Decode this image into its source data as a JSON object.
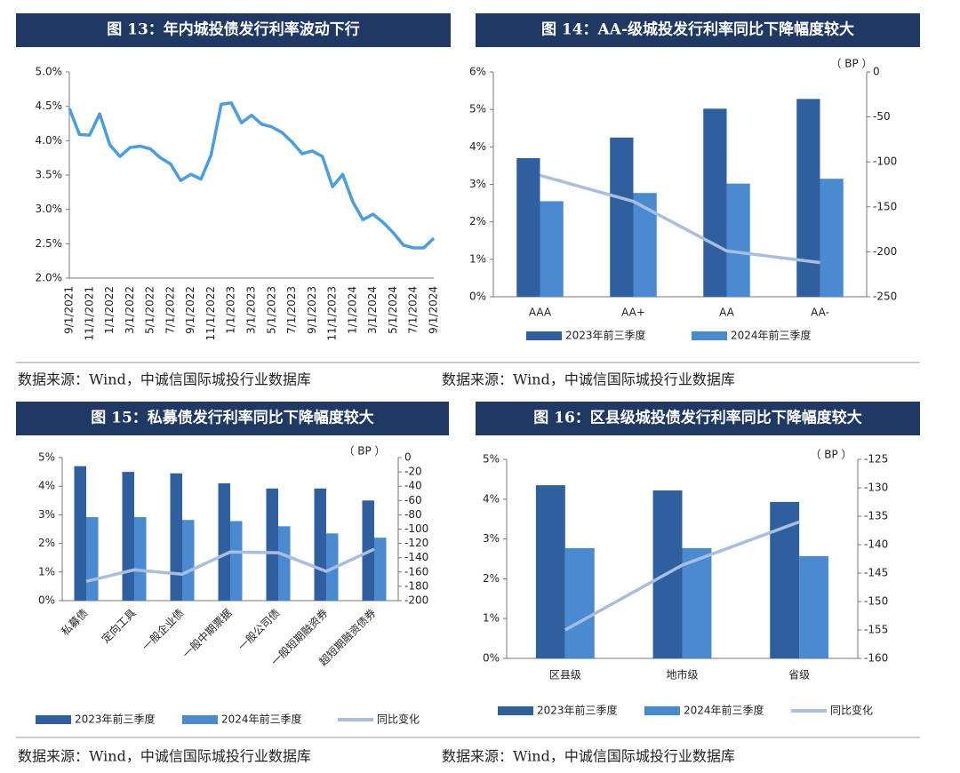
{
  "chart_data": [
    {
      "type": "line",
      "title": "图 13：年内城投债发行利率波动下行",
      "source": "数据来源：Wind，中诚信国际城投行业数据库",
      "categories": [
        "9/1/2021",
        null,
        "11/1/2021",
        null,
        "1/1/2022",
        null,
        "3/1/2022",
        null,
        "5/1/2022",
        null,
        "7/1/2022",
        null,
        "9/1/2022",
        null,
        "11/1/2022",
        null,
        "1/1/2023",
        null,
        "3/1/2023",
        null,
        "5/1/2023",
        null,
        "7/1/2023",
        null,
        "9/1/2023",
        null,
        "11/1/2023",
        null,
        "1/1/2024",
        null,
        "3/1/2024",
        null,
        "5/1/2024",
        null,
        "7/1/2024",
        null,
        "9/1/2024"
      ],
      "values": [
        4.47,
        4.09,
        4.08,
        4.39,
        3.94,
        3.77,
        3.9,
        3.92,
        3.88,
        3.75,
        3.66,
        3.42,
        3.51,
        3.44,
        3.79,
        4.53,
        4.55,
        4.26,
        4.37,
        4.24,
        4.2,
        4.12,
        3.98,
        3.81,
        3.85,
        3.77,
        3.33,
        3.51,
        3.11,
        2.85,
        2.93,
        2.81,
        2.66,
        2.48,
        2.44,
        2.44,
        2.58
      ],
      "color": "#4a9ee0",
      "ylim": [
        2,
        5
      ],
      "yticks": [
        {
          "value": 2,
          "label": "2.0%"
        },
        {
          "value": 2.5,
          "label": "2.5%"
        },
        {
          "value": 3,
          "label": "3.0%"
        },
        {
          "value": 3.5,
          "label": "3.5%"
        },
        {
          "value": 4,
          "label": "4.0%"
        },
        {
          "value": 4.5,
          "label": "4.5%"
        },
        {
          "value": 5,
          "label": "5.0%"
        }
      ]
    },
    {
      "type": "bar",
      "title": "图 14：AA-级城投发行利率同比下降幅度较大",
      "source": "数据来源：Wind，中诚信国际城投行业数据库",
      "y2_unit": "（ BP ）",
      "categories": [
        "AAA",
        "AA+",
        "AA",
        "AA-"
      ],
      "series": [
        {
          "name": "2023年前三季度",
          "color": "#2f5f9e",
          "values": [
            3.7,
            4.25,
            5.02,
            5.28
          ]
        },
        {
          "name": "2024年前三季度",
          "color": "#4a8ad0",
          "values": [
            2.55,
            2.77,
            3.02,
            3.15
          ]
        },
        {
          "type": "line",
          "axis": "y2",
          "color": "#a9bedf",
          "values": [
            -115,
            -144,
            -199,
            -212
          ]
        }
      ],
      "ylim": [
        0,
        6
      ],
      "yticks": [
        {
          "value": 0,
          "label": "0%"
        },
        {
          "value": 1,
          "label": "1%"
        },
        {
          "value": 2,
          "label": "2%"
        },
        {
          "value": 3,
          "label": "3%"
        },
        {
          "value": 4,
          "label": "4%"
        },
        {
          "value": 5,
          "label": "5%"
        },
        {
          "value": 6,
          "label": "6%"
        }
      ],
      "y2lim": [
        -250,
        0
      ],
      "y2ticks": [
        0,
        -50,
        -100,
        -150,
        -200,
        -250
      ]
    },
    {
      "type": "bar",
      "title": "图 15：私募债发行利率同比下降幅度较大",
      "source": "数据来源：Wind，中诚信国际城投行业数据库",
      "y2_unit": "（ BP ）",
      "categories": [
        "私募债",
        "定向工具",
        "一般企业债",
        "一般中期票据",
        "一般公司债",
        "一般短期融资券",
        "超短期融资债券"
      ],
      "series": [
        {
          "name": "2023年前三季度",
          "color": "#2f5f9e",
          "values": [
            4.7,
            4.5,
            4.45,
            4.1,
            3.92,
            3.92,
            3.5
          ]
        },
        {
          "name": "2024年前三季度",
          "color": "#4a8ad0",
          "values": [
            2.92,
            2.92,
            2.82,
            2.78,
            2.6,
            2.35,
            2.2
          ]
        },
        {
          "name": "同比变化",
          "type": "line",
          "axis": "y2",
          "color": "#a9bedf",
          "values": [
            -173,
            -157,
            -163,
            -132,
            -133,
            -159,
            -128
          ]
        }
      ],
      "ylim": [
        0,
        5
      ],
      "yticks": [
        {
          "value": 0,
          "label": "0%"
        },
        {
          "value": 1,
          "label": "1%"
        },
        {
          "value": 2,
          "label": "2%"
        },
        {
          "value": 3,
          "label": "3%"
        },
        {
          "value": 4,
          "label": "4%"
        },
        {
          "value": 5,
          "label": "5%"
        }
      ],
      "y2lim": [
        -200,
        0
      ],
      "y2ticks": [
        0,
        -20,
        -40,
        -60,
        -80,
        -100,
        -120,
        -140,
        -160,
        -180,
        -200
      ]
    },
    {
      "type": "bar",
      "title": "图 16：区县级城投债发行利率同比下降幅度较大",
      "source": "数据来源：Wind，中诚信国际城投行业数据库",
      "y2_unit": "（ BP ）",
      "categories": [
        "区县级",
        "地市级",
        "省级"
      ],
      "series": [
        {
          "name": "2023年前三季度",
          "color": "#2f5f9e",
          "values": [
            4.35,
            4.22,
            3.93
          ]
        },
        {
          "name": "2024年前三季度",
          "color": "#4a8ad0",
          "values": [
            2.77,
            2.77,
            2.57
          ]
        },
        {
          "name": "同比变化",
          "type": "line",
          "axis": "y2",
          "color": "#a9bedf",
          "values": [
            -155,
            -143.6,
            -136
          ]
        }
      ],
      "ylim": [
        0,
        5
      ],
      "yticks": [
        {
          "value": 0,
          "label": "0%"
        },
        {
          "value": 1,
          "label": "1%"
        },
        {
          "value": 2,
          "label": "2%"
        },
        {
          "value": 3,
          "label": "3%"
        },
        {
          "value": 4,
          "label": "4%"
        },
        {
          "value": 5,
          "label": "5%"
        }
      ],
      "y2lim": [
        -160,
        -125
      ],
      "y2ticks": [
        -125,
        -130,
        -135,
        -140,
        -145,
        -150,
        -155,
        -160
      ]
    }
  ]
}
